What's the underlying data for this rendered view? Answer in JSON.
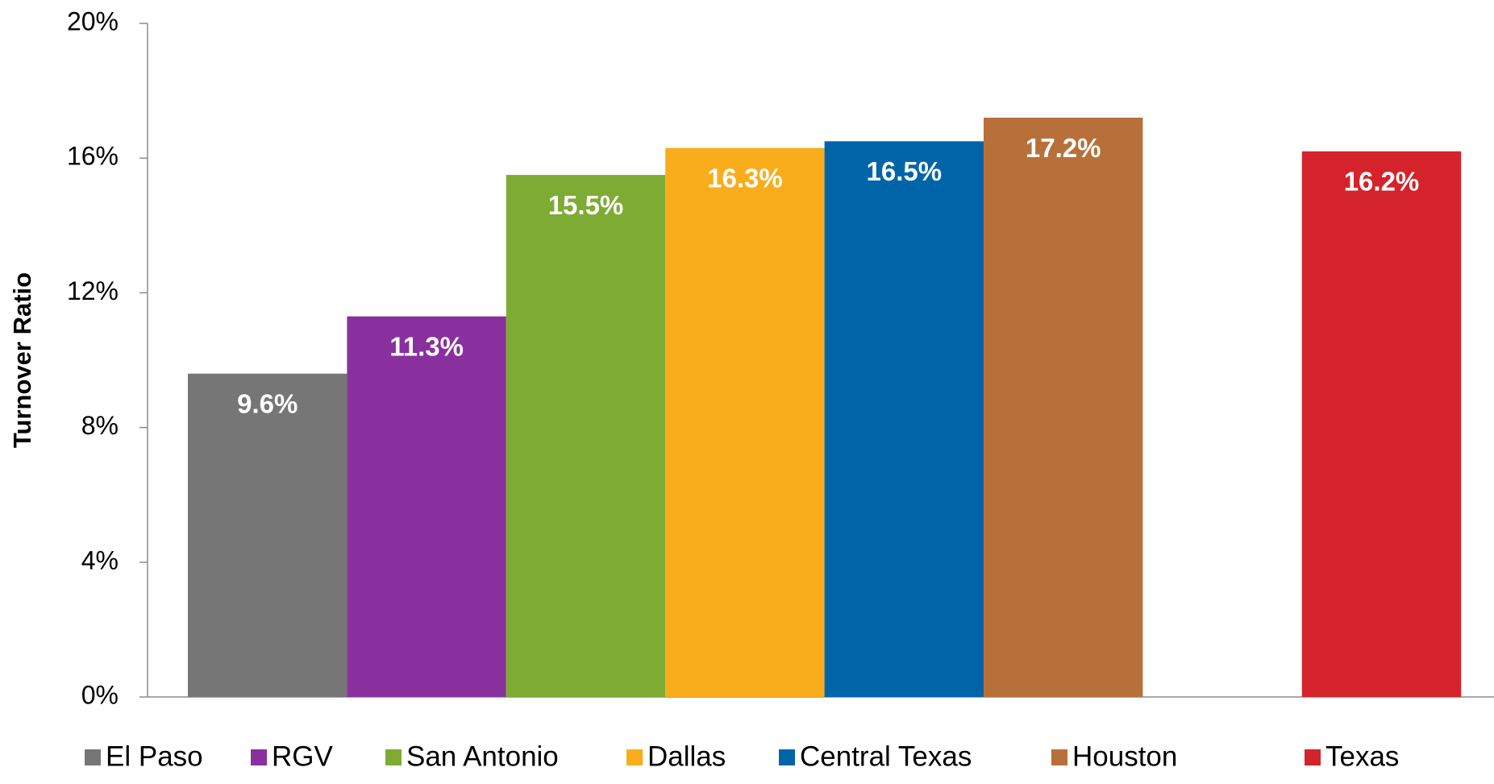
{
  "chart_data": {
    "type": "bar",
    "y_label": "Turnover Ratio",
    "series": [
      {
        "name": "El Paso",
        "color": "#767676",
        "values": [
          9.6
        ],
        "value_labels": [
          "9.6%"
        ]
      },
      {
        "name": "RGV",
        "color": "#8a2f9e",
        "values": [
          11.3
        ],
        "value_labels": [
          "11.3%"
        ]
      },
      {
        "name": "San Antonio",
        "color": "#7dab33",
        "values": [
          15.5
        ],
        "value_labels": [
          "15.5%"
        ]
      },
      {
        "name": "Dallas",
        "color": "#f9ad1b",
        "values": [
          16.3
        ],
        "value_labels": [
          "16.3%"
        ]
      },
      {
        "name": "Central Texas",
        "color": "#0065a8",
        "values": [
          16.5
        ],
        "value_labels": [
          "16.5%"
        ]
      },
      {
        "name": "Houston",
        "color": "#b8703a",
        "values": [
          17.2
        ],
        "value_labels": [
          "17.2%"
        ]
      },
      {
        "name": "Texas",
        "color": "#d4232b",
        "values": [
          16.2
        ],
        "value_labels": [
          "16.2%"
        ]
      }
    ],
    "ylim": [
      0,
      20
    ],
    "yticks": [
      {
        "value": 0,
        "label": "0%"
      },
      {
        "value": 4,
        "label": "4%"
      },
      {
        "value": 8,
        "label": "8%"
      },
      {
        "value": 12,
        "label": "12%"
      },
      {
        "value": 16,
        "label": "16%"
      },
      {
        "value": 20,
        "label": "20%"
      }
    ],
    "grid": false
  }
}
